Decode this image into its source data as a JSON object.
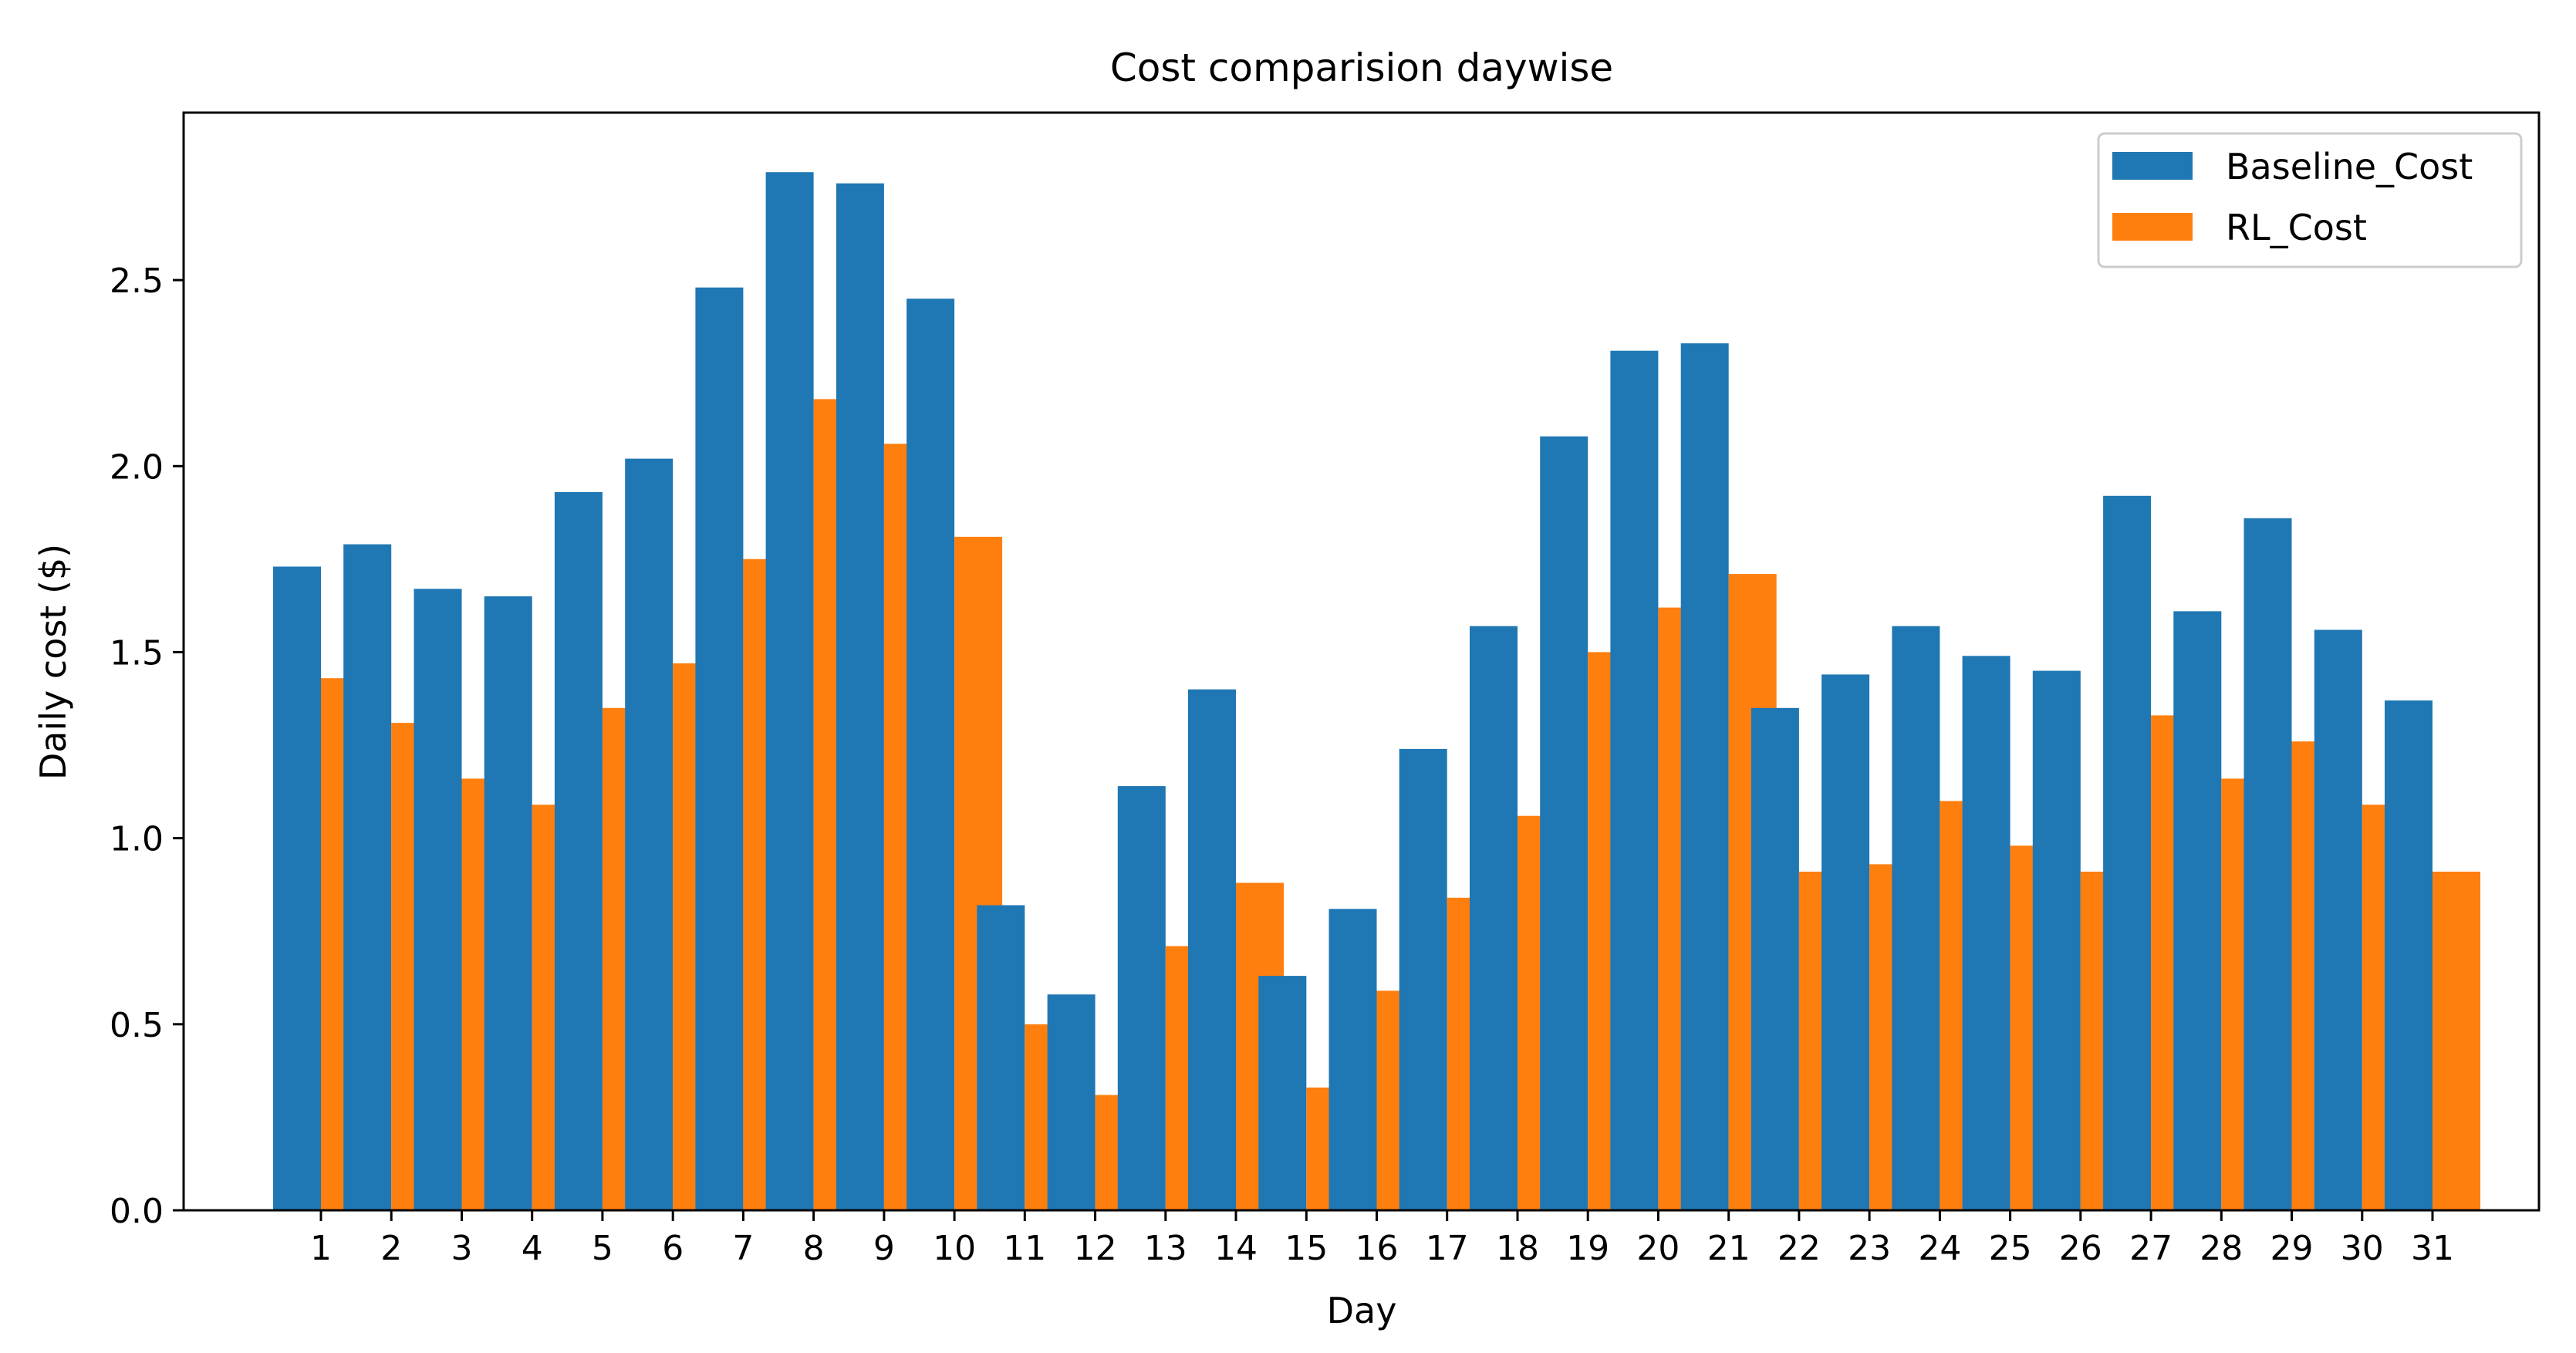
{
  "chart_data": {
    "type": "bar",
    "title": "Cost comparision daywise",
    "xlabel": "Day",
    "ylabel": "Daily cost ($)",
    "ylim": [
      0,
      2.95
    ],
    "yticks": [
      0.0,
      0.5,
      1.0,
      1.5,
      2.0,
      2.5
    ],
    "ytick_labels": [
      "0.0",
      "0.5",
      "1.0",
      "1.5",
      "2.0",
      "2.5"
    ],
    "grid": false,
    "legend_position": "top-right",
    "categories": [
      "1",
      "2",
      "3",
      "4",
      "5",
      "6",
      "7",
      "8",
      "9",
      "10",
      "11",
      "12",
      "13",
      "14",
      "15",
      "16",
      "17",
      "18",
      "19",
      "20",
      "21",
      "22",
      "23",
      "24",
      "25",
      "26",
      "27",
      "28",
      "29",
      "30",
      "31"
    ],
    "series": [
      {
        "name": "Baseline_Cost",
        "color": "#1f77b4",
        "values": [
          1.73,
          1.79,
          1.67,
          1.65,
          1.93,
          2.02,
          2.48,
          2.79,
          2.76,
          2.45,
          0.82,
          0.58,
          1.14,
          1.4,
          0.63,
          0.81,
          1.24,
          1.57,
          2.08,
          2.31,
          2.33,
          1.35,
          1.44,
          1.57,
          1.49,
          1.45,
          1.92,
          1.61,
          1.86,
          1.56,
          1.37
        ]
      },
      {
        "name": "RL_Cost",
        "color": "#ff7f0e",
        "values": [
          1.43,
          1.31,
          1.16,
          1.09,
          1.35,
          1.47,
          1.75,
          2.18,
          2.06,
          1.81,
          0.5,
          0.31,
          0.71,
          0.88,
          0.33,
          0.59,
          0.84,
          1.06,
          1.5,
          1.62,
          1.71,
          0.91,
          0.93,
          1.1,
          0.98,
          0.91,
          1.33,
          1.16,
          1.26,
          1.09,
          0.91
        ]
      }
    ]
  }
}
